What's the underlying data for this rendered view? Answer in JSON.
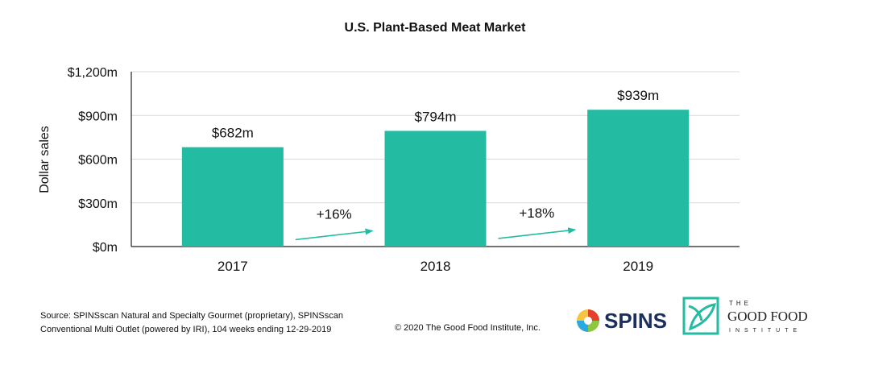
{
  "chart_data": {
    "type": "bar",
    "title": "U.S. Plant-Based Meat Market",
    "ylabel": "Dollar sales",
    "xlabel": "",
    "categories": [
      "2017",
      "2018",
      "2019"
    ],
    "values": [
      682,
      794,
      939
    ],
    "data_labels": [
      "$682m",
      "$794m",
      "$939m"
    ],
    "ylim": [
      0,
      1200
    ],
    "yticks": [
      0,
      300,
      600,
      900,
      1200
    ],
    "ytick_labels": [
      "$0m",
      "$300m",
      "$600m",
      "$900m",
      "$1,200m"
    ],
    "bar_color": "#23bca3",
    "arrow_color": "#23bca3",
    "grid": true,
    "annotations": [
      {
        "text": "+16%",
        "from": "2017",
        "to": "2018"
      },
      {
        "text": "+18%",
        "from": "2018",
        "to": "2019"
      }
    ]
  },
  "footer": {
    "source_line1": "Source: SPINSscan Natural and Specialty Gourmet (proprietary), SPINSscan",
    "source_line2": "Conventional Multi Outlet (powered by IRI), 104 weeks ending 12-29-2019",
    "copyright": "© 2020 The Good Food Institute, Inc."
  },
  "logos": {
    "spins_text": "SPINS",
    "gfi_the": "THE",
    "gfi_name": "GOOD FOOD",
    "gfi_institute": "INSTITUTE",
    "gfi_color": "#23bca3"
  }
}
